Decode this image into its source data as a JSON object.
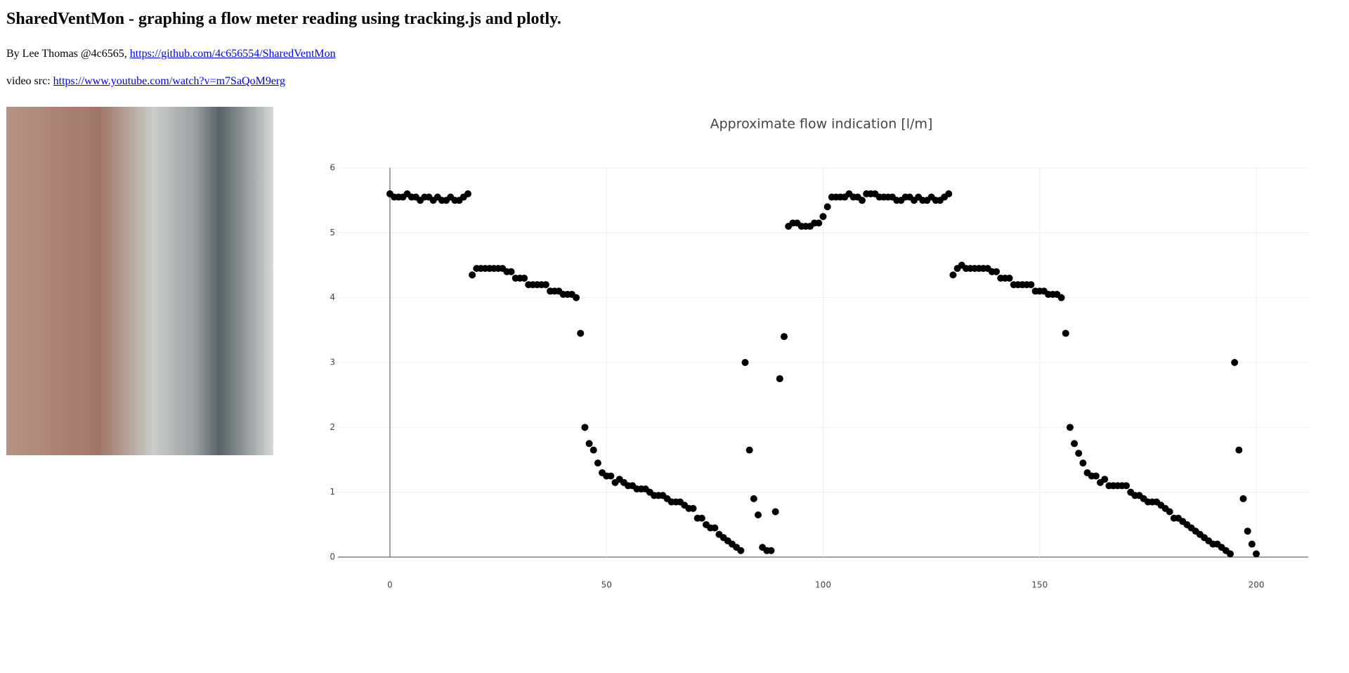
{
  "header": {
    "title": "SharedVentMon - graphing a flow meter reading using tracking.js and plotly.",
    "byline": "By Lee Thomas @4c6565,",
    "repo_link": "https://github.com/4c656554/SharedVentMon",
    "video_label": "video src:",
    "video_link": "https://www.youtube.com/watch?v=m7SaQoM9erg"
  },
  "chart_data": {
    "type": "scatter",
    "title": "Approximate flow indication [l/m]",
    "color": "#000000",
    "grid": true,
    "xlim": [
      -12,
      212
    ],
    "ylim": [
      0,
      6
    ],
    "xticks": [
      0,
      50,
      100,
      150,
      200
    ],
    "yticks": [
      0,
      1,
      2,
      3,
      4,
      5,
      6
    ],
    "x": [
      0,
      1,
      2,
      3,
      4,
      5,
      6,
      7,
      8,
      9,
      10,
      11,
      12,
      13,
      14,
      15,
      16,
      17,
      18,
      19,
      20,
      21,
      22,
      23,
      24,
      25,
      26,
      27,
      28,
      29,
      30,
      31,
      32,
      33,
      34,
      35,
      36,
      37,
      38,
      39,
      40,
      41,
      42,
      43,
      44,
      45,
      46,
      47,
      48,
      49,
      50,
      51,
      52,
      53,
      54,
      55,
      56,
      57,
      58,
      59,
      60,
      61,
      62,
      63,
      64,
      65,
      66,
      67,
      68,
      69,
      70,
      71,
      72,
      73,
      74,
      75,
      76,
      77,
      78,
      79,
      80,
      81,
      82,
      83,
      84,
      85,
      86,
      87,
      88,
      89,
      90,
      91,
      92,
      93,
      94,
      95,
      96,
      97,
      98,
      99,
      100,
      101,
      102,
      103,
      104,
      105,
      106,
      107,
      108,
      109,
      110,
      111,
      112,
      113,
      114,
      115,
      116,
      117,
      118,
      119,
      120,
      121,
      122,
      123,
      124,
      125,
      126,
      127,
      128,
      129,
      130,
      131,
      132,
      133,
      134,
      135,
      136,
      137,
      138,
      139,
      140,
      141,
      142,
      143,
      144,
      145,
      146,
      147,
      148,
      149,
      150,
      151,
      152,
      153,
      154,
      155,
      156,
      157,
      158,
      159,
      160,
      161,
      162,
      163,
      164,
      165,
      166,
      167,
      168,
      169,
      170,
      171,
      172,
      173,
      174,
      175,
      176,
      177,
      178,
      179,
      180,
      181,
      182,
      183,
      184,
      185,
      186,
      187,
      188,
      189,
      190,
      191,
      192,
      193,
      194,
      195,
      196,
      197,
      198,
      199,
      200
    ],
    "values": [
      5.6,
      5.55,
      5.55,
      5.55,
      5.6,
      5.55,
      5.55,
      5.5,
      5.55,
      5.55,
      5.5,
      5.55,
      5.5,
      5.5,
      5.55,
      5.5,
      5.5,
      5.55,
      5.6,
      4.35,
      4.45,
      4.45,
      4.45,
      4.45,
      4.45,
      4.45,
      4.45,
      4.4,
      4.4,
      4.3,
      4.3,
      4.3,
      4.2,
      4.2,
      4.2,
      4.2,
      4.2,
      4.1,
      4.1,
      4.1,
      4.05,
      4.05,
      4.05,
      4.0,
      3.45,
      2.0,
      1.75,
      1.65,
      1.45,
      1.3,
      1.25,
      1.25,
      1.15,
      1.2,
      1.15,
      1.1,
      1.1,
      1.05,
      1.05,
      1.05,
      1.0,
      0.95,
      0.95,
      0.95,
      0.9,
      0.85,
      0.85,
      0.85,
      0.8,
      0.75,
      0.75,
      0.6,
      0.6,
      0.5,
      0.45,
      0.45,
      0.35,
      0.3,
      0.25,
      0.2,
      0.15,
      0.1,
      3.0,
      1.65,
      0.9,
      0.65,
      0.15,
      0.1,
      0.1,
      0.7,
      2.75,
      3.4,
      5.1,
      5.15,
      5.15,
      5.1,
      5.1,
      5.1,
      5.15,
      5.15,
      5.25,
      5.4,
      5.55,
      5.55,
      5.55,
      5.55,
      5.6,
      5.55,
      5.55,
      5.5,
      5.6,
      5.6,
      5.6,
      5.55,
      5.55,
      5.55,
      5.55,
      5.5,
      5.5,
      5.55,
      5.55,
      5.5,
      5.55,
      5.5,
      5.5,
      5.55,
      5.5,
      5.5,
      5.55,
      5.6,
      4.35,
      4.45,
      4.5,
      4.45,
      4.45,
      4.45,
      4.45,
      4.45,
      4.45,
      4.4,
      4.4,
      4.3,
      4.3,
      4.3,
      4.2,
      4.2,
      4.2,
      4.2,
      4.2,
      4.1,
      4.1,
      4.1,
      4.05,
      4.05,
      4.05,
      4.0,
      3.45,
      2.0,
      1.75,
      1.6,
      1.45,
      1.3,
      1.25,
      1.25,
      1.15,
      1.2,
      1.1,
      1.1,
      1.1,
      1.1,
      1.1,
      1.0,
      0.95,
      0.95,
      0.9,
      0.85,
      0.85,
      0.85,
      0.8,
      0.75,
      0.7,
      0.6,
      0.6,
      0.55,
      0.5,
      0.45,
      0.4,
      0.35,
      0.3,
      0.25,
      0.2,
      0.2,
      0.15,
      0.1,
      0.05,
      3.0,
      1.65,
      0.9,
      0.4,
      0.2,
      0.05
    ]
  }
}
